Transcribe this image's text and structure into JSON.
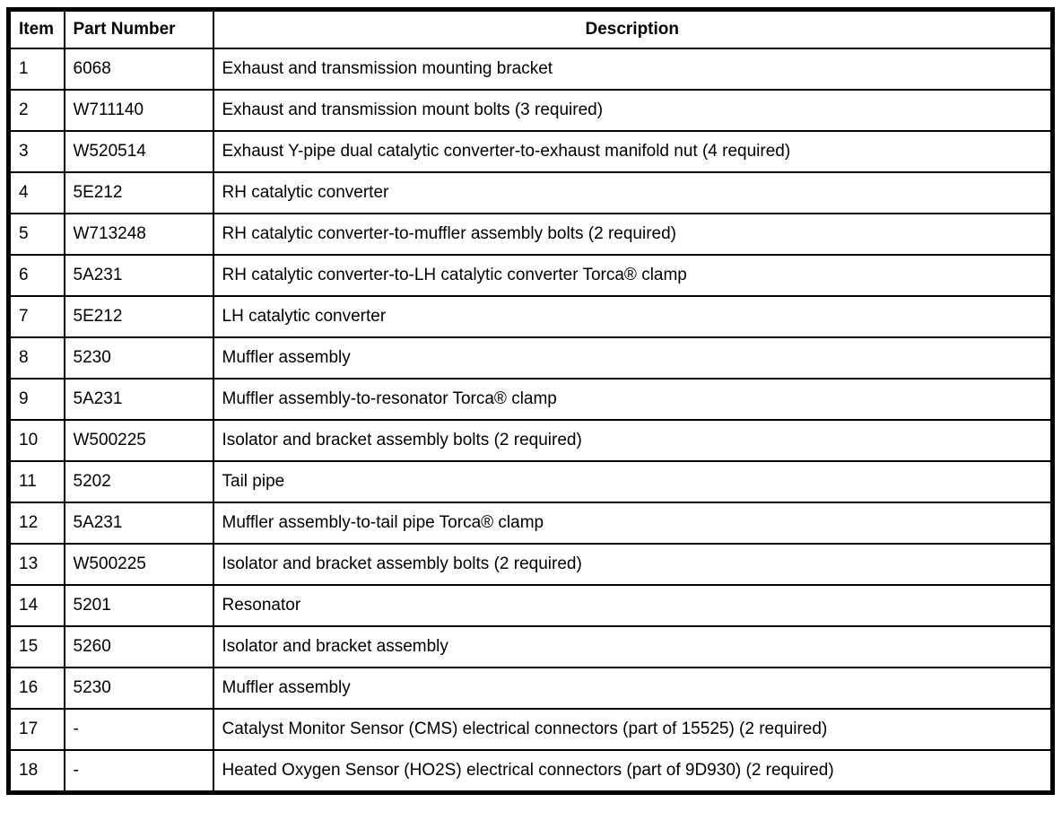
{
  "table": {
    "columns": {
      "item": "Item",
      "part_number": "Part Number",
      "description": "Description"
    },
    "rows": [
      {
        "item": "1",
        "part": "6068",
        "desc": "Exhaust and transmission mounting bracket"
      },
      {
        "item": "2",
        "part": "W711140",
        "desc": "Exhaust and transmission mount bolts (3 required)"
      },
      {
        "item": "3",
        "part": "W520514",
        "desc": "Exhaust Y-pipe dual catalytic converter-to-exhaust manifold nut (4 required)"
      },
      {
        "item": "4",
        "part": "5E212",
        "desc": "RH catalytic converter"
      },
      {
        "item": "5",
        "part": "W713248",
        "desc": "RH catalytic converter-to-muffler assembly bolts (2 required)"
      },
      {
        "item": "6",
        "part": "5A231",
        "desc": "RH catalytic converter-to-LH catalytic converter Torca® clamp"
      },
      {
        "item": "7",
        "part": "5E212",
        "desc": "LH catalytic converter"
      },
      {
        "item": "8",
        "part": "5230",
        "desc": "Muffler assembly"
      },
      {
        "item": "9",
        "part": "5A231",
        "desc": "Muffler assembly-to-resonator Torca® clamp"
      },
      {
        "item": "10",
        "part": "W500225",
        "desc": "Isolator and bracket assembly bolts (2 required)"
      },
      {
        "item": "11",
        "part": "5202",
        "desc": "Tail pipe"
      },
      {
        "item": "12",
        "part": "5A231",
        "desc": "Muffler assembly-to-tail pipe Torca® clamp"
      },
      {
        "item": "13",
        "part": "W500225",
        "desc": "Isolator and bracket assembly bolts (2 required)"
      },
      {
        "item": "14",
        "part": "5201",
        "desc": "Resonator"
      },
      {
        "item": "15",
        "part": "5260",
        "desc": "Isolator and bracket assembly"
      },
      {
        "item": "16",
        "part": "5230",
        "desc": "Muffler assembly"
      },
      {
        "item": "17",
        "part": "-",
        "desc": "Catalyst Monitor Sensor (CMS) electrical connectors (part of 15525) (2 required)"
      },
      {
        "item": "18",
        "part": "-",
        "desc": "Heated Oxygen Sensor (HO2S) electrical connectors (part of 9D930) (2 required)"
      }
    ]
  }
}
